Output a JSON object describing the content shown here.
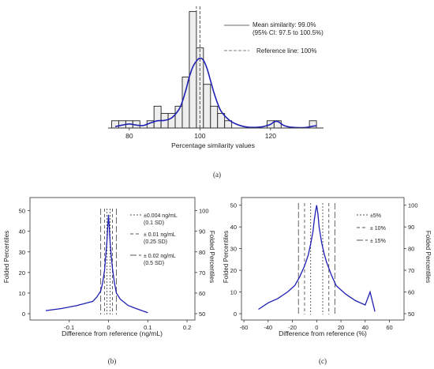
{
  "panel_letters": {
    "a": "(a)",
    "b": "(b)",
    "c": "(c)"
  },
  "chart_data": [
    {
      "id": "a",
      "type": "bar",
      "xlabel": "Percentage similarity values",
      "xlim": [
        74,
        135
      ],
      "xticks": [
        80,
        100,
        120
      ],
      "bins": [
        {
          "x0": 75,
          "x1": 77,
          "count": 1
        },
        {
          "x0": 77,
          "x1": 79,
          "count": 1
        },
        {
          "x0": 79,
          "x1": 81,
          "count": 1
        },
        {
          "x0": 81,
          "x1": 83,
          "count": 1
        },
        {
          "x0": 83,
          "x1": 85,
          "count": 0
        },
        {
          "x0": 85,
          "x1": 87,
          "count": 1
        },
        {
          "x0": 87,
          "x1": 89,
          "count": 3
        },
        {
          "x0": 89,
          "x1": 91,
          "count": 2
        },
        {
          "x0": 91,
          "x1": 93,
          "count": 2
        },
        {
          "x0": 93,
          "x1": 95,
          "count": 3
        },
        {
          "x0": 95,
          "x1": 97,
          "count": 7
        },
        {
          "x0": 97,
          "x1": 99,
          "count": 16
        },
        {
          "x0": 99,
          "x1": 101,
          "count": 11
        },
        {
          "x0": 101,
          "x1": 103,
          "count": 6
        },
        {
          "x0": 103,
          "x1": 105,
          "count": 3
        },
        {
          "x0": 105,
          "x1": 107,
          "count": 2
        },
        {
          "x0": 107,
          "x1": 109,
          "count": 1
        },
        {
          "x0": 109,
          "x1": 111,
          "count": 0
        },
        {
          "x0": 111,
          "x1": 113,
          "count": 0
        },
        {
          "x0": 113,
          "x1": 115,
          "count": 0
        },
        {
          "x0": 115,
          "x1": 117,
          "count": 0
        },
        {
          "x0": 117,
          "x1": 119,
          "count": 0
        },
        {
          "x0": 119,
          "x1": 121,
          "count": 1
        },
        {
          "x0": 121,
          "x1": 123,
          "count": 1
        },
        {
          "x0": 123,
          "x1": 125,
          "count": 0
        },
        {
          "x0": 125,
          "x1": 127,
          "count": 0
        },
        {
          "x0": 127,
          "x1": 129,
          "count": 0
        },
        {
          "x0": 129,
          "x1": 131,
          "count": 0
        },
        {
          "x0": 131,
          "x1": 133,
          "count": 1
        }
      ],
      "density_curve": {
        "x": [
          76,
          78,
          80,
          82,
          84,
          86,
          88,
          90,
          92,
          94,
          95,
          96,
          97,
          98,
          99,
          100,
          101,
          102,
          103,
          104,
          105,
          106,
          108,
          110,
          112,
          114,
          116,
          118,
          120,
          121,
          122,
          123,
          124,
          126,
          128,
          130,
          132,
          133
        ],
        "y": [
          0.2,
          0.4,
          0.55,
          0.4,
          0.35,
          0.7,
          1.0,
          1.05,
          1.4,
          2.5,
          3.6,
          5.2,
          7.0,
          8.4,
          9.2,
          9.6,
          9.3,
          8.2,
          6.5,
          4.8,
          3.4,
          2.3,
          1.2,
          0.6,
          0.25,
          0.1,
          0.1,
          0.2,
          0.5,
          0.85,
          0.9,
          0.6,
          0.3,
          0.1,
          0.05,
          0.08,
          0.25,
          0.3
        ]
      },
      "ylim": [
        0,
        16.5
      ],
      "mean_line": 99.0,
      "reference_line": 100,
      "annotations": {
        "mean_line1": "Mean similarity: 99.0%",
        "mean_line2": "(95% CI: 97.5 to 100.5%)",
        "reference": "Reference line: 100%"
      }
    },
    {
      "id": "b",
      "type": "line",
      "xlabel": "Difference from reference (ng/mL)",
      "ylabel_left": "Folded Percentiles",
      "ylabel_right": "Folded Percentiles",
      "xlim": [
        -0.2,
        0.22
      ],
      "xticks": [
        -0.1,
        0.0,
        0.1,
        0.2
      ],
      "xtick_labels": [
        "-0.1",
        "0",
        "0.1",
        "0.2"
      ],
      "ylim": [
        0,
        51
      ],
      "yticks_left": [
        0,
        10,
        20,
        30,
        40,
        50
      ],
      "yticks_right_labels": [
        "50",
        "60",
        "70",
        "80",
        "90",
        "100"
      ],
      "x": [
        -0.16,
        -0.12,
        -0.08,
        -0.04,
        -0.03,
        -0.02,
        -0.015,
        -0.01,
        -0.007,
        -0.004,
        -0.002,
        0,
        0.002,
        0.004,
        0.007,
        0.01,
        0.015,
        0.02,
        0.03,
        0.05,
        0.07,
        0.1
      ],
      "y": [
        1.5,
        2.5,
        4,
        6,
        8,
        11,
        15,
        21,
        28,
        35,
        42,
        48,
        42,
        35,
        28,
        22,
        15,
        10,
        7,
        4,
        2.5,
        0.5
      ],
      "reference_lines": [
        {
          "value": 0.004,
          "style": "dotted",
          "label_1": "±0.004 ng/mL",
          "label_2": "(0.1 SD)"
        },
        {
          "value": 0.01,
          "style": "dashed",
          "label_1": "± 0.01 ng/mL",
          "label_2": "(0.25 SD)"
        },
        {
          "value": 0.02,
          "style": "longdash",
          "label_1": "± 0.02 ng/mL",
          "label_2": "(0.5 SD)"
        }
      ]
    },
    {
      "id": "c",
      "type": "line",
      "xlabel": "Difference from reference (%)",
      "ylabel_left": "Folded Percentiles",
      "ylabel_right": "Folded Percentiles",
      "xlim": [
        -62,
        72
      ],
      "xticks": [
        -60,
        -40,
        -20,
        0,
        20,
        40,
        60
      ],
      "xtick_labels": [
        "-60",
        "-40",
        "-20",
        "0",
        "20",
        "40",
        "60"
      ],
      "ylim": [
        0,
        51
      ],
      "yticks_left": [
        0,
        10,
        20,
        30,
        40,
        50
      ],
      "yticks_right_labels": [
        "50",
        "60",
        "70",
        "80",
        "90",
        "100"
      ],
      "x": [
        -48,
        -40,
        -32,
        -24,
        -18,
        -14,
        -10,
        -7,
        -5,
        -3,
        -2,
        -1,
        0,
        1,
        2,
        4,
        6,
        8,
        12,
        16,
        24,
        32,
        40,
        44,
        48
      ],
      "y": [
        2,
        5,
        7,
        10,
        13,
        17,
        22,
        27,
        32,
        38,
        43,
        47,
        50,
        46,
        40,
        33,
        28,
        24,
        18,
        13,
        9,
        6,
        4,
        10,
        1
      ],
      "reference_lines": [
        {
          "value": 5,
          "style": "dotted",
          "label_1": "±5%"
        },
        {
          "value": 10,
          "style": "dashed",
          "label_1": "± 10%"
        },
        {
          "value": 15,
          "style": "longdash",
          "label_1": "± 15%"
        }
      ]
    }
  ]
}
